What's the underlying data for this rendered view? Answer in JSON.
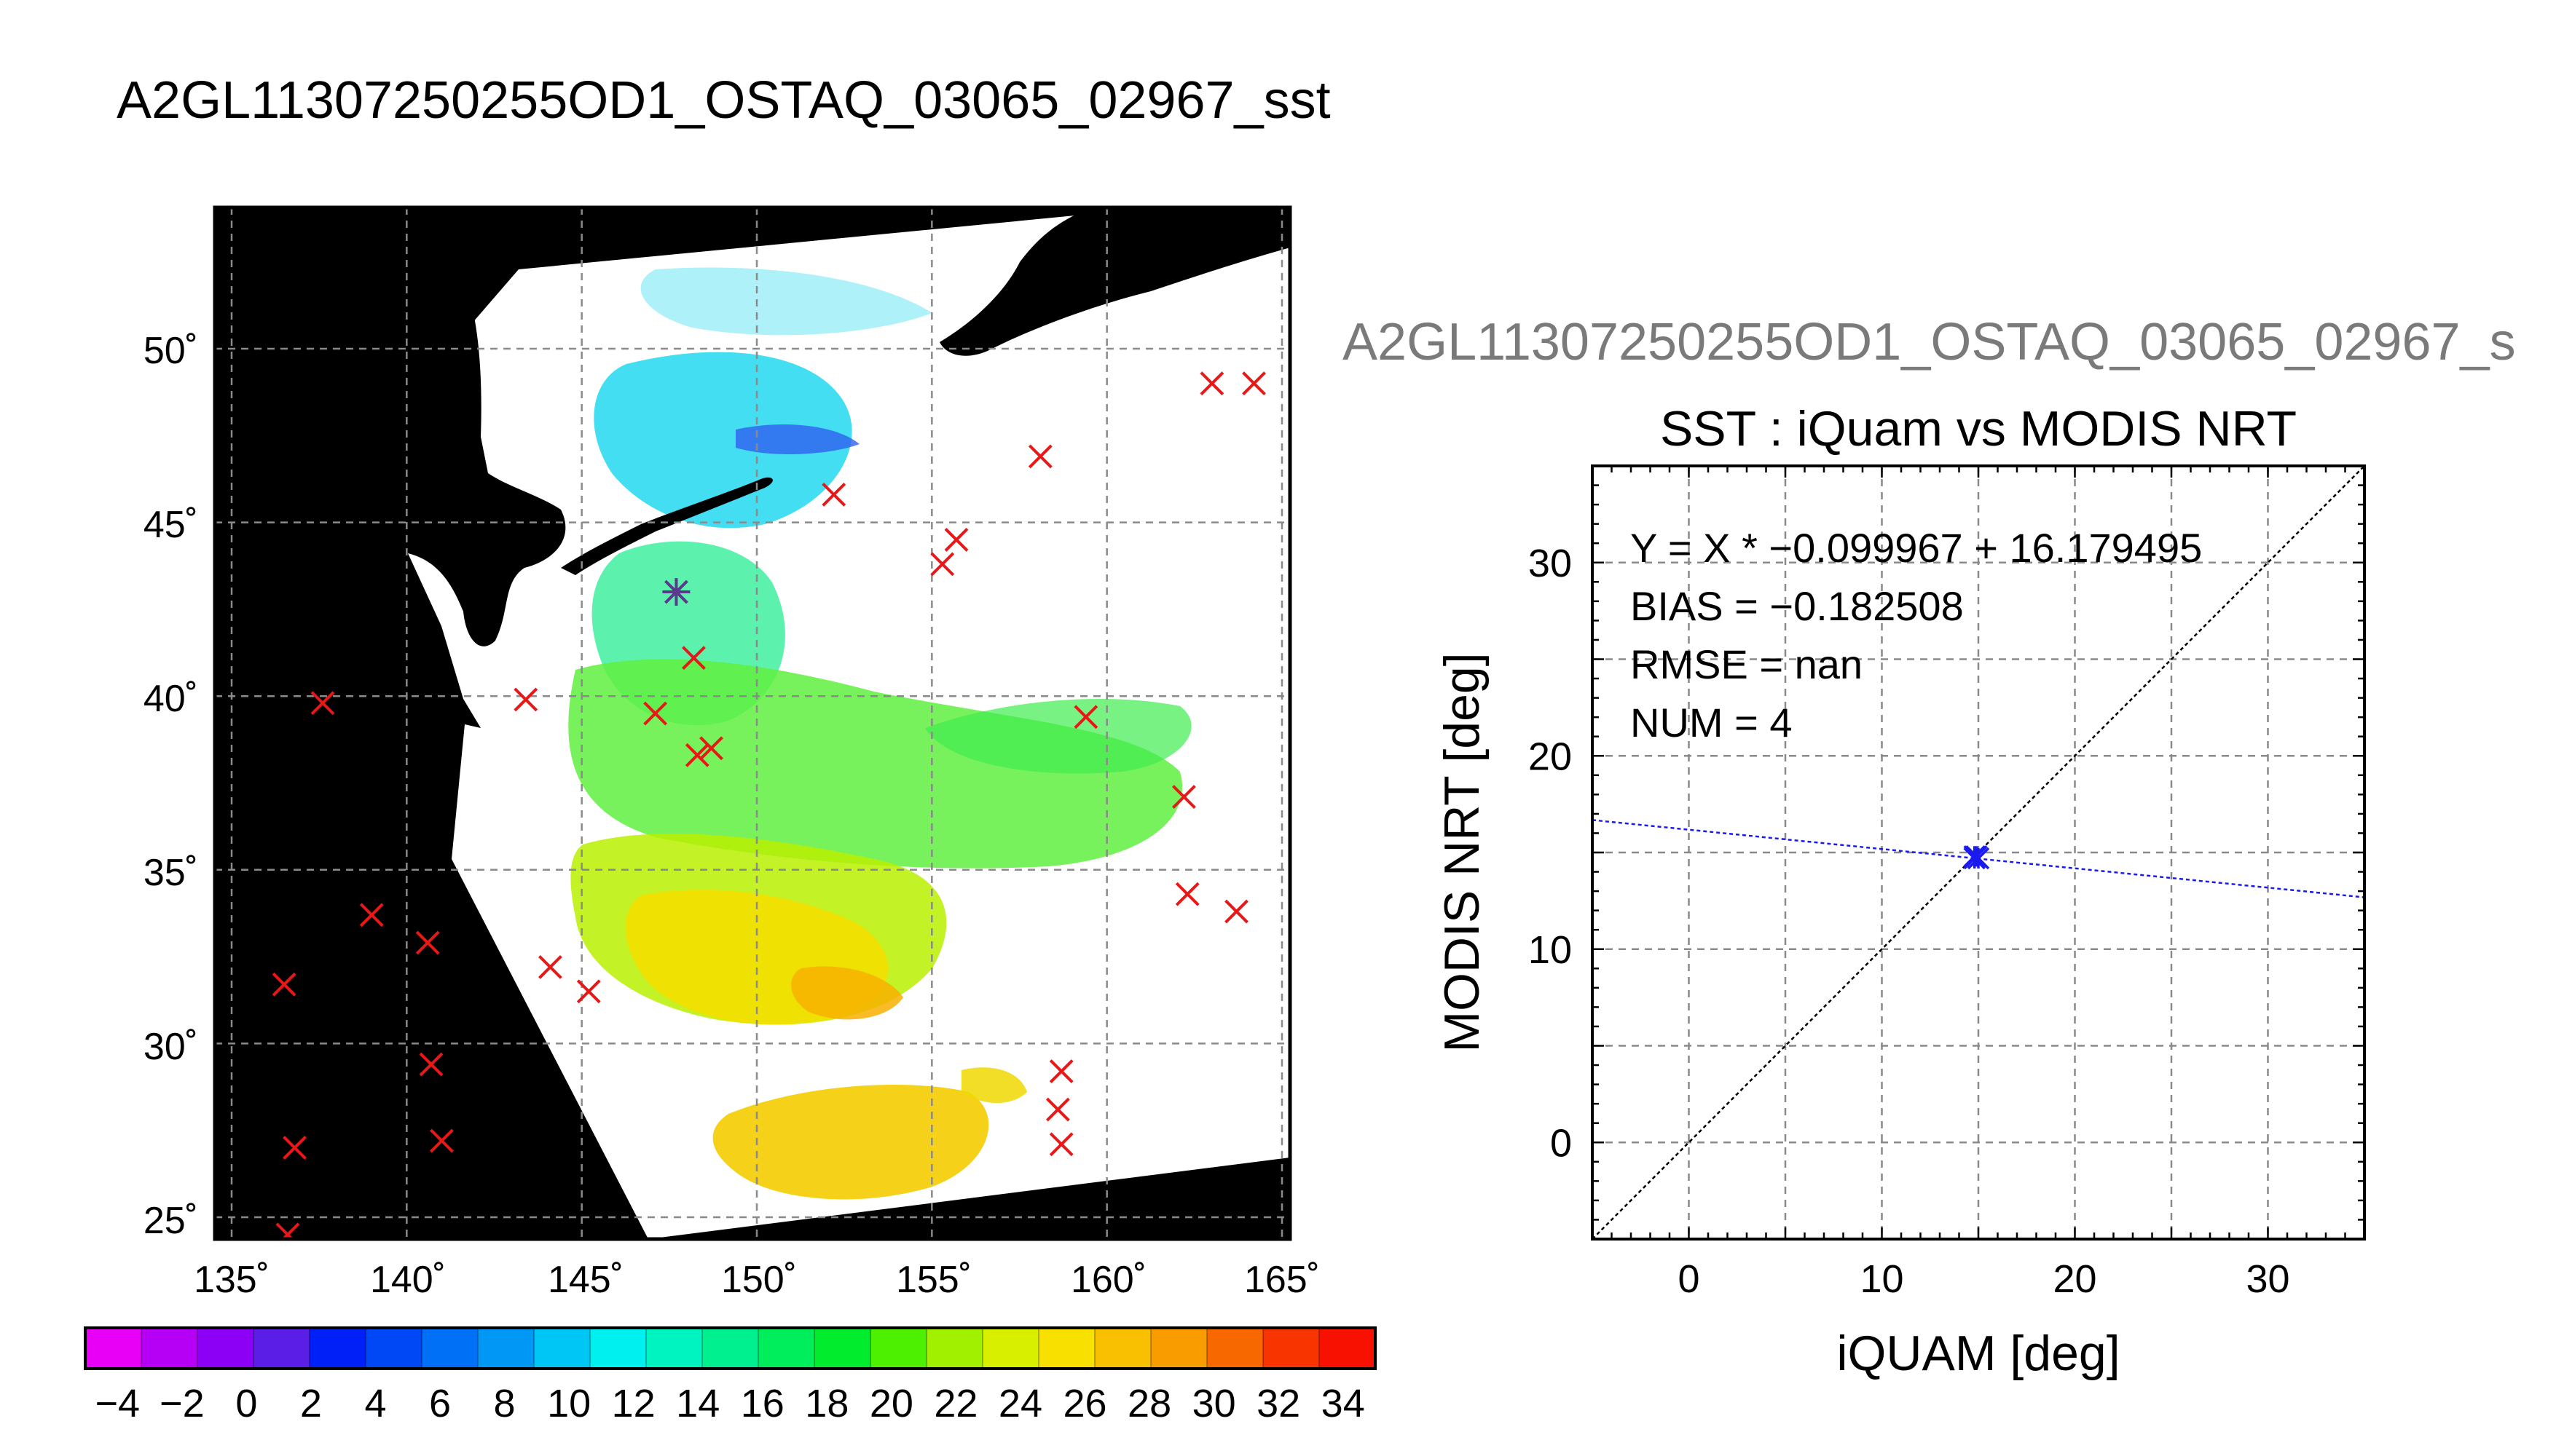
{
  "page_title": "A2GL11307250255OD1_OSTAQ_03065_02967_sst",
  "secondary_title": "A2GL11307250255OD1_OSTAQ_03065_02967_s",
  "chart_data": [
    {
      "type": "map",
      "xlim": [
        135,
        165
      ],
      "ylim": [
        24.5,
        54
      ],
      "x_ticks": [
        135,
        140,
        145,
        150,
        155,
        160,
        165
      ],
      "y_ticks": [
        25,
        30,
        35,
        40,
        45,
        50
      ],
      "x_tick_labels": [
        "135˚",
        "140˚",
        "145˚",
        "150˚",
        "155˚",
        "160˚",
        "165˚"
      ],
      "y_tick_labels": [
        "25˚",
        "30˚",
        "35˚",
        "40˚",
        "45˚",
        "50˚"
      ],
      "grid": true,
      "markers": [
        {
          "lon": 147.7,
          "lat": 43.0,
          "color": "#5a3a8a"
        },
        {
          "lon": 137.6,
          "lat": 39.8
        },
        {
          "lon": 143.4,
          "lat": 39.9
        },
        {
          "lon": 147.1,
          "lat": 39.5
        },
        {
          "lon": 148.2,
          "lat": 41.1
        },
        {
          "lon": 148.3,
          "lat": 38.3
        },
        {
          "lon": 148.7,
          "lat": 38.5
        },
        {
          "lon": 152.2,
          "lat": 45.8
        },
        {
          "lon": 155.7,
          "lat": 44.5
        },
        {
          "lon": 155.3,
          "lat": 43.8
        },
        {
          "lon": 158.1,
          "lat": 46.9
        },
        {
          "lon": 159.4,
          "lat": 39.4
        },
        {
          "lon": 162.2,
          "lat": 37.1
        },
        {
          "lon": 162.3,
          "lat": 34.3
        },
        {
          "lon": 163.7,
          "lat": 33.8
        },
        {
          "lon": 163.0,
          "lat": 49.0
        },
        {
          "lon": 164.2,
          "lat": 49.0
        },
        {
          "lon": 139.0,
          "lat": 33.7
        },
        {
          "lon": 140.6,
          "lat": 32.9
        },
        {
          "lon": 144.1,
          "lat": 32.2
        },
        {
          "lon": 145.2,
          "lat": 31.5
        },
        {
          "lon": 136.5,
          "lat": 31.7
        },
        {
          "lon": 140.7,
          "lat": 29.4
        },
        {
          "lon": 141.0,
          "lat": 27.2
        },
        {
          "lon": 136.8,
          "lat": 27.0
        },
        {
          "lon": 136.6,
          "lat": 24.5
        },
        {
          "lon": 158.7,
          "lat": 29.2
        },
        {
          "lon": 158.6,
          "lat": 28.1
        },
        {
          "lon": 158.7,
          "lat": 27.1
        }
      ]
    },
    {
      "type": "colorbar",
      "min": -5,
      "max": 35,
      "tick_labels": [
        "−4",
        "−2",
        "0",
        "2",
        "4",
        "6",
        "8",
        "10",
        "12",
        "14",
        "16",
        "18",
        "20",
        "22",
        "24",
        "26",
        "28",
        "30",
        "32",
        "34"
      ],
      "colors": [
        "#e800f6",
        "#b600f6",
        "#8c00f6",
        "#5a1ee6",
        "#0020f8",
        "#0048f6",
        "#0070f6",
        "#0098f4",
        "#00c6f6",
        "#00f0f0",
        "#00f4c0",
        "#00f090",
        "#00ee5c",
        "#00ec2c",
        "#4cf000",
        "#a0f000",
        "#d8f000",
        "#f8e000",
        "#f8c000",
        "#f89c00",
        "#f86800",
        "#f83400",
        "#f81000"
      ]
    },
    {
      "type": "scatter",
      "title": "SST : iQuam vs MODIS NRT",
      "xlabel": "iQUAM [deg]",
      "ylabel": "MODIS NRT [deg]",
      "xlim": [
        -5,
        35
      ],
      "ylim": [
        -5,
        35
      ],
      "x_ticks": [
        0,
        10,
        20,
        30
      ],
      "y_ticks": [
        0,
        10,
        20,
        30
      ],
      "grid": true,
      "points": [
        {
          "x": 14.8,
          "y": 14.7
        },
        {
          "x": 14.9,
          "y": 14.8
        },
        {
          "x": 15.0,
          "y": 14.7
        },
        {
          "x": 14.8,
          "y": 14.8
        }
      ],
      "fit_line": {
        "slope": -0.099967,
        "intercept": 16.179495
      },
      "identity_line": true,
      "annotations": [
        "Y = X * −0.099967 + 16.179495",
        "BIAS = −0.182508",
        "RMSE = nan",
        "NUM = 4"
      ]
    }
  ]
}
